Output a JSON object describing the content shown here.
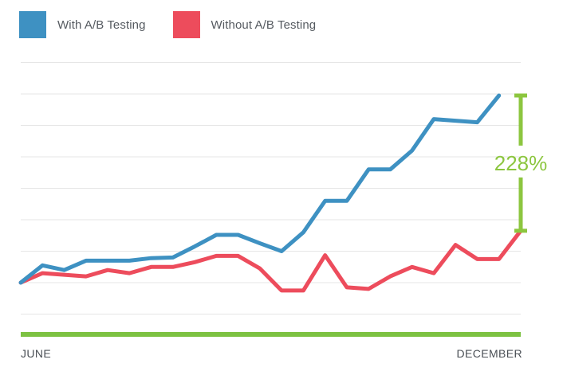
{
  "legend": {
    "items": [
      {
        "label": "With A/B Testing",
        "color": "#3e91c2"
      },
      {
        "label": "Without A/B Testing",
        "color": "#ed4c5c"
      }
    ]
  },
  "colors": {
    "grid": "#e6e6e6",
    "baseline": "#7dc242",
    "annotation": "#8cc63f"
  },
  "chart_data": {
    "type": "line",
    "x_start_label": "JUNE",
    "x_end_label": "DECEMBER",
    "annotation": {
      "label": "228%"
    },
    "grid": true,
    "legend_position": "top-left",
    "ylim": [
      -1.5,
      7
    ],
    "series": [
      {
        "name": "With A/B Testing",
        "color": "#3e91c2",
        "points": [
          [
            0,
            0
          ],
          [
            1,
            0.55
          ],
          [
            2,
            0.4
          ],
          [
            3,
            0.7
          ],
          [
            4,
            0.7
          ],
          [
            5,
            0.7
          ],
          [
            6,
            0.78
          ],
          [
            7,
            0.8
          ],
          [
            8,
            1.15
          ],
          [
            9,
            1.52
          ],
          [
            10,
            1.52
          ],
          [
            11,
            1.25
          ],
          [
            12,
            1.0
          ],
          [
            13,
            1.6
          ],
          [
            14,
            2.6
          ],
          [
            15,
            2.6
          ],
          [
            16,
            3.6
          ],
          [
            17,
            3.6
          ],
          [
            18,
            4.2
          ],
          [
            19,
            5.2
          ],
          [
            20,
            5.15
          ],
          [
            21,
            5.1
          ],
          [
            22,
            5.95
          ]
        ]
      },
      {
        "name": "Without A/B Testing",
        "color": "#ed4c5c",
        "points": [
          [
            0,
            0
          ],
          [
            1,
            0.3
          ],
          [
            2,
            0.25
          ],
          [
            3,
            0.2
          ],
          [
            4,
            0.4
          ],
          [
            5,
            0.3
          ],
          [
            6,
            0.5
          ],
          [
            7,
            0.5
          ],
          [
            8,
            0.65
          ],
          [
            9,
            0.85
          ],
          [
            10,
            0.85
          ],
          [
            11,
            0.45
          ],
          [
            12,
            -0.25
          ],
          [
            13,
            -0.25
          ],
          [
            14,
            0.87
          ],
          [
            15,
            -0.15
          ],
          [
            16,
            -0.2
          ],
          [
            17,
            0.2
          ],
          [
            18,
            0.5
          ],
          [
            19,
            0.3
          ],
          [
            20,
            1.2
          ],
          [
            21,
            0.75
          ],
          [
            22,
            0.75
          ],
          [
            23,
            1.65
          ]
        ]
      }
    ]
  }
}
